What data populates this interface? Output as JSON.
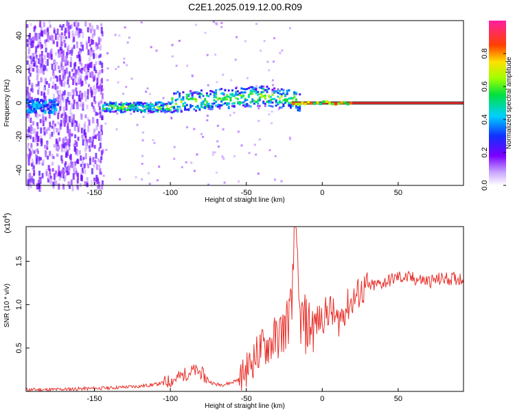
{
  "title": "C2E1.2025.019.12.00.R09",
  "colors": {
    "snr_line": "#e8302a",
    "background": "#ffffff",
    "axes": "#000000"
  },
  "chart_data": [
    {
      "type": "heatmap",
      "xlabel": "Height of straight line (km)",
      "ylabel": "Frequency (Hz)",
      "xlim": [
        -195,
        93
      ],
      "ylim": [
        -49,
        49
      ],
      "xticks": [
        -150,
        -100,
        -50,
        0,
        50
      ],
      "yticks": [
        -40,
        -20,
        0,
        20,
        40
      ],
      "grid": false,
      "colorbar": {
        "label": "Normalized spectral amplitude",
        "range": [
          0.0,
          1.0
        ],
        "ticks": [
          "0.0",
          "0.2",
          "0.4",
          "0.6",
          "0.8"
        ],
        "colormap": "rainbow (white-violet-blue-cyan-green-yellow-red-pink)"
      },
      "regions": [
        {
          "x_range": [
            -195,
            -145
          ],
          "freq_band": [
            -49,
            49
          ],
          "amplitude": 0.1
        },
        {
          "x_range": [
            -145,
            -20
          ],
          "freq_band": [
            -6,
            10
          ],
          "amplitude": 0.45
        },
        {
          "x_range": [
            -20,
            93
          ],
          "freq_band": [
            -1,
            1
          ],
          "amplitude": 1.0
        }
      ]
    },
    {
      "type": "line",
      "xlabel": "Height of straight line (km)",
      "ylabel": "SNR (10 * v/v)",
      "y_multiplier": "x10^4",
      "xlim": [
        -195,
        93
      ],
      "ylim": [
        0,
        1.9
      ],
      "xticks": [
        -150,
        -100,
        -50,
        0,
        50
      ],
      "yticks": [
        "0.5",
        "1.0",
        "1.5"
      ],
      "grid": false,
      "series": [
        {
          "x": [
            -195,
            -180,
            -160,
            -140,
            -130,
            -120,
            -110,
            -100,
            -95,
            -90,
            -85,
            -80,
            -75,
            -70,
            -65,
            -60,
            -55,
            -50,
            -45,
            -40,
            -35,
            -30,
            -25,
            -20,
            -18,
            -15,
            -10,
            -5,
            0,
            5,
            10,
            15,
            20,
            25,
            30,
            40,
            50,
            60,
            70,
            80,
            93
          ],
          "y": [
            0.02,
            0.02,
            0.03,
            0.04,
            0.05,
            0.06,
            0.08,
            0.12,
            0.16,
            0.2,
            0.24,
            0.22,
            0.12,
            0.08,
            0.08,
            0.1,
            0.14,
            0.25,
            0.38,
            0.5,
            0.55,
            0.62,
            0.72,
            0.95,
            1.9,
            0.85,
            0.75,
            0.78,
            0.85,
            0.95,
            0.8,
            0.95,
            1.05,
            1.15,
            1.2,
            1.25,
            1.32,
            1.3,
            1.27,
            1.3,
            1.3
          ]
        }
      ]
    }
  ]
}
